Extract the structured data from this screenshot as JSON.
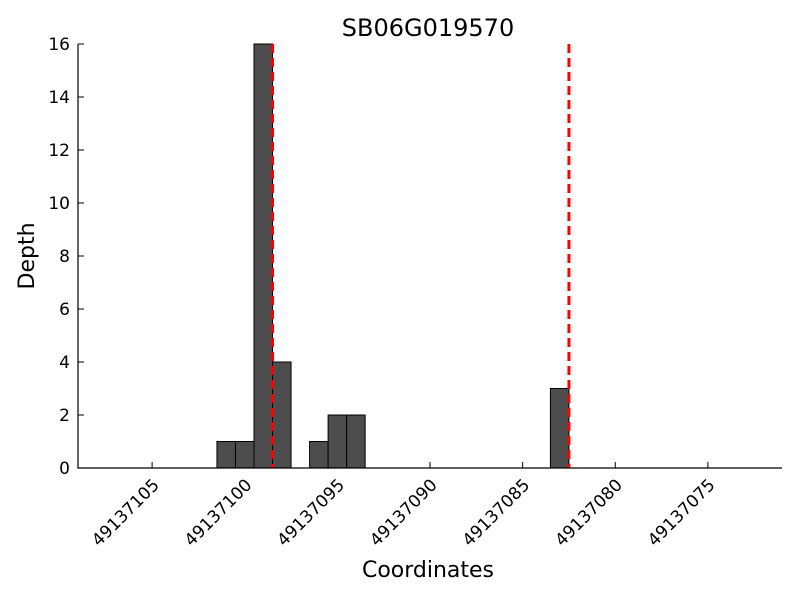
{
  "chart_data": {
    "type": "bar",
    "title": "SB06G019570",
    "xlabel": "Coordinates",
    "ylabel": "Depth",
    "x_axis_inverted": true,
    "xlim": [
      49137109,
      49137071
    ],
    "ylim": [
      0,
      16
    ],
    "x_ticks": [
      49137105,
      49137100,
      49137095,
      49137090,
      49137085,
      49137080,
      49137075
    ],
    "y_ticks": [
      0,
      2,
      4,
      6,
      8,
      10,
      12,
      14,
      16
    ],
    "bar_color": "#4d4d4d",
    "bars": [
      {
        "x": 49137101,
        "value": 1
      },
      {
        "x": 49137100,
        "value": 1
      },
      {
        "x": 49137099,
        "value": 16
      },
      {
        "x": 49137098,
        "value": 4
      },
      {
        "x": 49137096,
        "value": 1
      },
      {
        "x": 49137095,
        "value": 2
      },
      {
        "x": 49137094,
        "value": 2
      },
      {
        "x": 49137083,
        "value": 3
      }
    ],
    "reference_lines": {
      "color": "#ff0000",
      "style": "dashed",
      "x": [
        49137098.5,
        49137082.5
      ]
    },
    "grid": false,
    "legend": "none"
  }
}
